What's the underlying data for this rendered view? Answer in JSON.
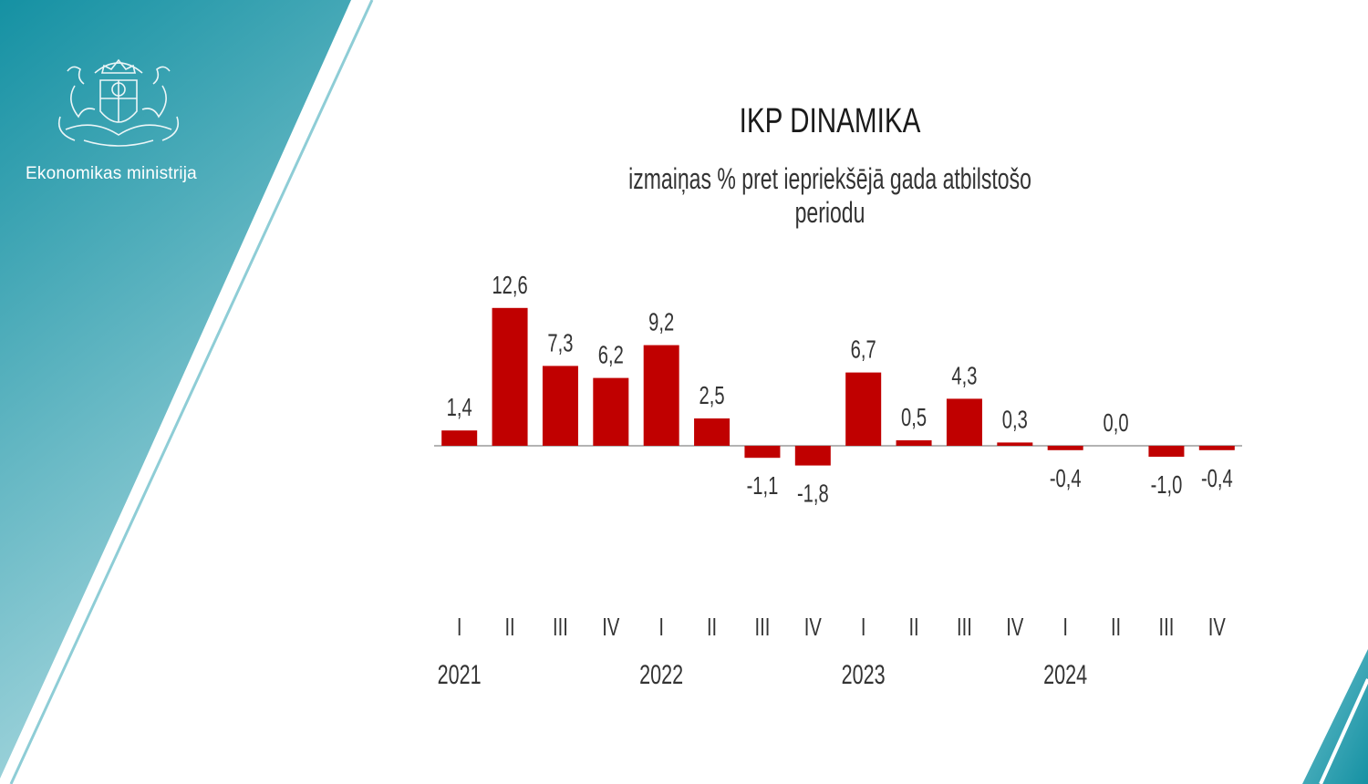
{
  "org": {
    "name": "Ekonomikas ministrija",
    "logo_icon": "coat-of-arms-icon"
  },
  "colors": {
    "bar": "#c00000",
    "band_top": "#1591a3",
    "band_bottom": "#a9d8df",
    "text": "#333333"
  },
  "chart_data": {
    "type": "bar",
    "title": "IKP DINAMIKA",
    "subtitle": "izmaiņas % pret iepriekšējā gada atbilstošo periodu",
    "categories": [
      "I",
      "II",
      "III",
      "IV",
      "I",
      "II",
      "III",
      "IV",
      "I",
      "II",
      "III",
      "IV",
      "I",
      "II",
      "III",
      "IV"
    ],
    "groups": [
      {
        "label": "2021",
        "start": 0
      },
      {
        "label": "2022",
        "start": 4
      },
      {
        "label": "2023",
        "start": 8
      },
      {
        "label": "2024",
        "start": 12
      }
    ],
    "values": [
      1.4,
      12.6,
      7.3,
      6.2,
      9.2,
      2.5,
      -1.1,
      -1.8,
      6.7,
      0.5,
      4.3,
      0.3,
      -0.4,
      0.0,
      -1.0,
      -0.4
    ],
    "value_labels": [
      "1,4",
      "12,6",
      "7,3",
      "6,2",
      "9,2",
      "2,5",
      "-1,1",
      "-1,8",
      "6,7",
      "0,5",
      "4,3",
      "0,3",
      "-0,4",
      "0,0",
      "-1,0",
      "-0,4"
    ],
    "xlabel": "",
    "ylabel": "",
    "grid": false,
    "legend": "none"
  }
}
